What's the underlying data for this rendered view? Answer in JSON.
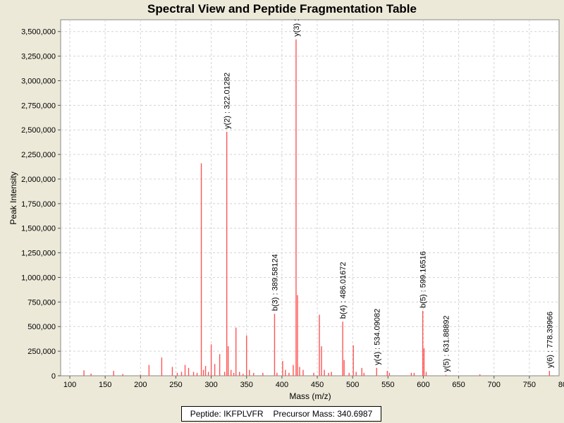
{
  "chart_data": {
    "type": "bar",
    "title": "Spectral View and Peptide Fragmentation Table",
    "xlabel": "Mass (m/z)",
    "ylabel": "Peak Intensity",
    "xlim": [
      87,
      792
    ],
    "ylim": [
      0,
      3620000
    ],
    "xticks": [
      100,
      150,
      200,
      250,
      300,
      350,
      400,
      450,
      500,
      550,
      600,
      650,
      700,
      750,
      800
    ],
    "yticks": [
      0,
      250000,
      500000,
      750000,
      1000000,
      1250000,
      1500000,
      1750000,
      2000000,
      2250000,
      2500000,
      2750000,
      3000000,
      3250000,
      3500000
    ],
    "ytick_labels": [
      "0",
      "250,000",
      "500,000",
      "750,000",
      "1,000,000",
      "1,250,000",
      "1,500,000",
      "1,750,000",
      "2,000,000",
      "2,250,000",
      "2,500,000",
      "2,750,000",
      "3,000,000",
      "3,250,000",
      "3,500,000"
    ],
    "grid": true,
    "bar_color": "#ff5555",
    "peaks": [
      [
        120,
        55000
      ],
      [
        130,
        22000
      ],
      [
        162,
        50000
      ],
      [
        175,
        18000
      ],
      [
        200,
        12000
      ],
      [
        212,
        110000
      ],
      [
        230,
        185000
      ],
      [
        245,
        90000
      ],
      [
        252,
        30000
      ],
      [
        258,
        40000
      ],
      [
        263,
        110000
      ],
      [
        268,
        80000
      ],
      [
        275,
        40000
      ],
      [
        280,
        30000
      ],
      [
        286,
        2160000
      ],
      [
        289,
        60000
      ],
      [
        292,
        100000
      ],
      [
        296,
        40000
      ],
      [
        300,
        320000
      ],
      [
        305,
        120000
      ],
      [
        312,
        220000
      ],
      [
        319,
        40000
      ],
      [
        322,
        2480000
      ],
      [
        324,
        300000
      ],
      [
        328,
        60000
      ],
      [
        332,
        30000
      ],
      [
        335,
        490000
      ],
      [
        340,
        40000
      ],
      [
        345,
        20000
      ],
      [
        350,
        410000
      ],
      [
        354,
        60000
      ],
      [
        360,
        30000
      ],
      [
        373,
        30000
      ],
      [
        389.6,
        630000
      ],
      [
        393,
        30000
      ],
      [
        401,
        150000
      ],
      [
        405,
        60000
      ],
      [
        410,
        30000
      ],
      [
        416,
        110000
      ],
      [
        420,
        3420000
      ],
      [
        422,
        820000
      ],
      [
        425,
        90000
      ],
      [
        430,
        60000
      ],
      [
        445,
        30000
      ],
      [
        453,
        620000
      ],
      [
        456,
        300000
      ],
      [
        460,
        60000
      ],
      [
        466,
        30000
      ],
      [
        470,
        40000
      ],
      [
        486,
        550000
      ],
      [
        488,
        160000
      ],
      [
        495,
        30000
      ],
      [
        501,
        310000
      ],
      [
        505,
        40000
      ],
      [
        513,
        80000
      ],
      [
        516,
        30000
      ],
      [
        534,
        80000
      ],
      [
        549,
        50000
      ],
      [
        552,
        30000
      ],
      [
        583,
        30000
      ],
      [
        587,
        30000
      ],
      [
        599.2,
        660000
      ],
      [
        601,
        280000
      ],
      [
        604,
        40000
      ],
      [
        631.9,
        10000
      ],
      [
        680,
        15000
      ],
      [
        778.4,
        50000
      ]
    ],
    "annotations": [
      {
        "label": "y(2) : 322.01282",
        "x": 322.01282,
        "y": 2480000
      },
      {
        "label": "y(3) : ",
        "x": 420,
        "y": 3420000
      },
      {
        "label": "b(3) : 389.58124",
        "x": 389.58124,
        "y": 630000
      },
      {
        "label": "b(4) : 486.01672",
        "x": 486.01672,
        "y": 550000
      },
      {
        "label": "y(4) : 534.09082",
        "x": 534.09082,
        "y": 80000
      },
      {
        "label": "b(5) : 599.16516",
        "x": 599.16516,
        "y": 660000
      },
      {
        "label": "y(5) : 631.88892",
        "x": 631.88892,
        "y": 10000
      },
      {
        "label": "y(6) : 778.39966",
        "x": 778.39966,
        "y": 50000
      }
    ]
  },
  "legend": {
    "peptide_text": "Peptide: IKFPLVFR",
    "precursor_text": "Precursor Mass: 340.6987"
  }
}
